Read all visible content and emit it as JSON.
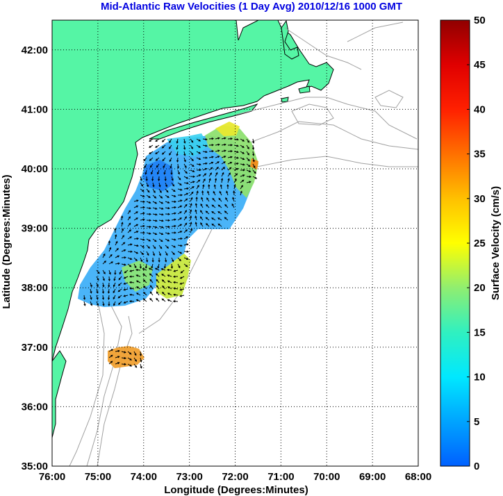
{
  "title": "Mid-Atlantic Raw Velocities (1 Day Avg) 2010/12/16 1000 GMT",
  "axes": {
    "xlabel": "Longitude (Degrees:Minutes)",
    "ylabel": "Latitude (Degrees:Minutes)",
    "x_ticks": [
      "76:00",
      "75:00",
      "74:00",
      "73:00",
      "72:00",
      "71:00",
      "70:00",
      "69:00",
      "68:00"
    ],
    "y_ticks": [
      "35:00",
      "36:00",
      "37:00",
      "38:00",
      "39:00",
      "40:00",
      "41:00",
      "42:00"
    ],
    "x_range": [
      -76,
      -68
    ],
    "y_range": [
      35,
      42.5
    ],
    "grid": "dotted"
  },
  "colorbar": {
    "label": "Surface Velocity (cm/s)",
    "ticks": [
      "0",
      "5",
      "10",
      "15",
      "20",
      "25",
      "30",
      "35",
      "40",
      "45",
      "50"
    ],
    "range": [
      0,
      50
    ],
    "colormap": "jet"
  },
  "colors": {
    "title": "#0000e0",
    "land": "#55f5a5",
    "coastline": "#000000",
    "bathymetry": "#a0a0a0",
    "grid": "#000000"
  },
  "chart_data": {
    "type": "heatmap",
    "title": "Mid-Atlantic Raw Velocities (1 Day Avg) 2010/12/16 1000 GMT",
    "xlabel": "Longitude (Degrees:Minutes)",
    "ylabel": "Latitude (Degrees:Minutes)",
    "xlim": [
      -76,
      -68
    ],
    "ylim": [
      35,
      42.5
    ],
    "value_label": "Surface Velocity (cm/s)",
    "value_range": [
      0,
      50
    ],
    "regions": [
      {
        "lon": -73.8,
        "lat": 40.0,
        "speed": 3
      },
      {
        "lon": -73.2,
        "lat": 39.6,
        "speed": 8
      },
      {
        "lon": -72.4,
        "lat": 40.3,
        "speed": 20
      },
      {
        "lon": -71.9,
        "lat": 40.5,
        "speed": 25
      },
      {
        "lon": -72.8,
        "lat": 39.0,
        "speed": 9
      },
      {
        "lon": -74.4,
        "lat": 38.6,
        "speed": 10
      },
      {
        "lon": -74.8,
        "lat": 38.2,
        "speed": 6
      },
      {
        "lon": -73.3,
        "lat": 38.4,
        "speed": 24
      },
      {
        "lon": -73.0,
        "lat": 38.3,
        "speed": 27
      },
      {
        "lon": -73.6,
        "lat": 38.0,
        "speed": 15
      },
      {
        "lon": -74.2,
        "lat": 36.8,
        "speed": 32
      }
    ]
  }
}
